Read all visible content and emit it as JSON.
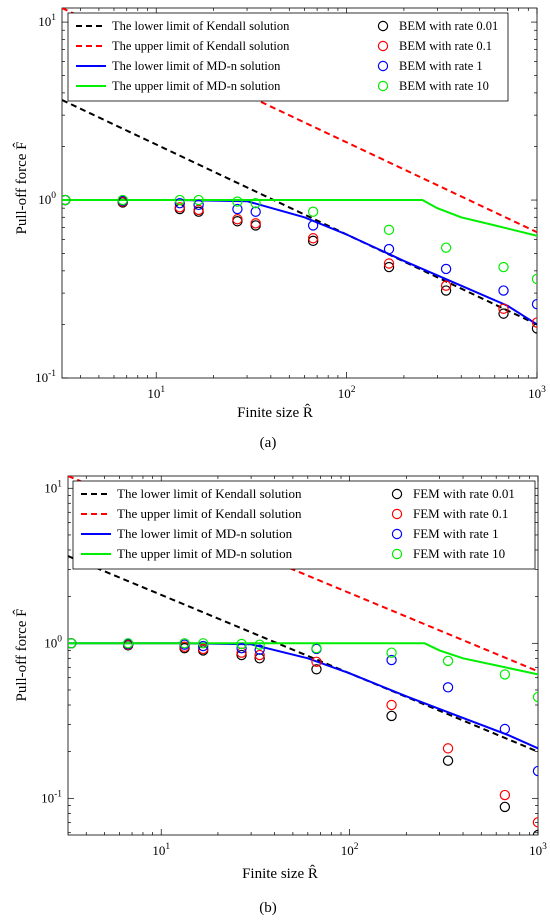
{
  "chart_data": [
    {
      "type": "line",
      "panel_label": "(a)",
      "xlabel": "Finite size R̂",
      "ylabel": "Pull-off force F̂",
      "x_scale": "log",
      "y_scale": "log",
      "xlim": [
        3.2,
        1000
      ],
      "ylim": [
        0.1,
        12
      ],
      "x_ticks": [
        {
          "v": 10,
          "b": "10",
          "e": "1"
        },
        {
          "v": 100,
          "b": "10",
          "e": "2"
        },
        {
          "v": 1000,
          "b": "10",
          "e": "3"
        }
      ],
      "y_ticks": [
        {
          "v": 0.1,
          "b": "10",
          "e": "-1"
        },
        {
          "v": 1,
          "b": "10",
          "e": "0"
        },
        {
          "v": 10,
          "b": "10",
          "e": "1"
        }
      ],
      "grid": false,
      "legend_position": "top",
      "series": [
        {
          "name": "The lower limit of Kendall solution",
          "style": "dashed",
          "color": "#000000",
          "x": [
            3.2,
            1000
          ],
          "y": [
            3.65,
            0.2
          ]
        },
        {
          "name": "The upper limit of Kendall solution",
          "style": "dashed",
          "color": "#ff0000",
          "x": [
            3.2,
            1000
          ],
          "y": [
            12,
            0.66
          ]
        },
        {
          "name": "The lower limit of MD-n solution",
          "style": "solid",
          "color": "#0000ff",
          "x": [
            3.2,
            13,
            30,
            60,
            100,
            200,
            400,
            700,
            1000
          ],
          "y": [
            1,
            1,
            0.985,
            0.8,
            0.64,
            0.455,
            0.33,
            0.255,
            0.2
          ]
        },
        {
          "name": "The upper limit of MD-n solution",
          "style": "solid",
          "color": "#00ee00",
          "x": [
            3.2,
            250,
            300,
            400,
            600,
            1000
          ],
          "y": [
            1,
            1,
            0.9,
            0.8,
            0.72,
            0.63
          ]
        },
        {
          "name": "BEM with rate 0.01",
          "style": "marker",
          "color": "#000000",
          "x": [
            3.33,
            6.67,
            13.3,
            16.7,
            26.7,
            33.3,
            66.7,
            167,
            333,
            667,
            1000
          ],
          "y": [
            1,
            0.97,
            0.89,
            0.86,
            0.76,
            0.72,
            0.59,
            0.42,
            0.31,
            0.23,
            0.19
          ]
        },
        {
          "name": "BEM with rate 0.1",
          "style": "marker",
          "color": "#ff0000",
          "x": [
            3.33,
            6.67,
            13.3,
            16.7,
            26.7,
            33.3,
            66.7,
            167,
            333,
            667,
            1000
          ],
          "y": [
            1,
            0.98,
            0.91,
            0.88,
            0.78,
            0.74,
            0.61,
            0.44,
            0.33,
            0.245,
            0.205
          ]
        },
        {
          "name": "BEM with rate 1",
          "style": "marker",
          "color": "#0000ff",
          "x": [
            3.33,
            6.67,
            13.3,
            16.7,
            26.7,
            33.3,
            66.7,
            167,
            333,
            667,
            1000
          ],
          "y": [
            1,
            0.99,
            0.96,
            0.94,
            0.89,
            0.86,
            0.72,
            0.53,
            0.41,
            0.31,
            0.26
          ]
        },
        {
          "name": "BEM with rate 10",
          "style": "marker",
          "color": "#00ee00",
          "x": [
            3.33,
            6.67,
            13.3,
            16.7,
            26.7,
            33.3,
            66.7,
            167,
            333,
            667,
            1000
          ],
          "y": [
            1,
            1,
            1,
            1,
            0.98,
            0.96,
            0.86,
            0.68,
            0.54,
            0.42,
            0.36
          ]
        }
      ]
    },
    {
      "type": "line",
      "panel_label": "(b)",
      "xlabel": "Finite size R̂",
      "ylabel": "Pull-off force F̂",
      "x_scale": "log",
      "y_scale": "log",
      "xlim": [
        3.2,
        1000
      ],
      "ylim": [
        0.058,
        12
      ],
      "x_ticks": [
        {
          "v": 10,
          "b": "10",
          "e": "1"
        },
        {
          "v": 100,
          "b": "10",
          "e": "2"
        },
        {
          "v": 1000,
          "b": "10",
          "e": "3"
        }
      ],
      "y_ticks": [
        {
          "v": 0.1,
          "b": "10",
          "e": "-1"
        },
        {
          "v": 1,
          "b": "10",
          "e": "0"
        },
        {
          "v": 10,
          "b": "10",
          "e": "1"
        }
      ],
      "grid": false,
      "legend_position": "top",
      "series": [
        {
          "name": "The lower limit of Kendall solution",
          "style": "dashed",
          "color": "#000000",
          "x": [
            3.2,
            1000
          ],
          "y": [
            3.65,
            0.2
          ]
        },
        {
          "name": "The upper limit of Kendall solution",
          "style": "dashed",
          "color": "#ff0000",
          "x": [
            3.2,
            1000
          ],
          "y": [
            12,
            0.66
          ]
        },
        {
          "name": "The lower limit of MD-n solution",
          "style": "solid",
          "color": "#0000ff",
          "x": [
            3.2,
            13,
            30,
            60,
            100,
            200,
            400,
            700,
            1000
          ],
          "y": [
            1,
            1,
            0.985,
            0.8,
            0.64,
            0.455,
            0.33,
            0.255,
            0.21
          ]
        },
        {
          "name": "The upper limit of MD-n solution",
          "style": "solid",
          "color": "#00ee00",
          "x": [
            3.2,
            250,
            300,
            400,
            600,
            1000
          ],
          "y": [
            1,
            1,
            0.9,
            0.8,
            0.72,
            0.63
          ]
        },
        {
          "name": "FEM with rate 0.01",
          "style": "marker",
          "color": "#000000",
          "x": [
            3.33,
            6.67,
            13.3,
            16.7,
            26.7,
            33.3,
            66.7,
            167,
            333,
            667,
            1000
          ],
          "y": [
            1,
            0.97,
            0.93,
            0.9,
            0.84,
            0.8,
            0.68,
            0.34,
            0.175,
            0.088,
            0.058
          ]
        },
        {
          "name": "FEM with rate 0.1",
          "style": "marker",
          "color": "#ff0000",
          "x": [
            3.33,
            6.67,
            13.3,
            16.7,
            26.7,
            33.3,
            66.7,
            167,
            333,
            667,
            1000
          ],
          "y": [
            1,
            0.98,
            0.95,
            0.92,
            0.87,
            0.84,
            0.76,
            0.4,
            0.21,
            0.105,
            0.07
          ]
        },
        {
          "name": "FEM with rate 1",
          "style": "marker",
          "color": "#0000ff",
          "x": [
            3.33,
            6.67,
            13.3,
            16.7,
            26.7,
            33.3,
            66.7,
            167,
            333,
            667,
            1000
          ],
          "y": [
            1,
            0.99,
            0.98,
            0.96,
            0.93,
            0.91,
            0.92,
            0.78,
            0.52,
            0.28,
            0.15
          ]
        },
        {
          "name": "FEM with rate 10",
          "style": "marker",
          "color": "#00ee00",
          "x": [
            3.33,
            6.67,
            13.3,
            16.7,
            26.7,
            33.3,
            66.7,
            167,
            333,
            667,
            1000
          ],
          "y": [
            1,
            1,
            1,
            1,
            0.99,
            0.98,
            0.93,
            0.87,
            0.77,
            0.63,
            0.45
          ]
        }
      ]
    }
  ]
}
